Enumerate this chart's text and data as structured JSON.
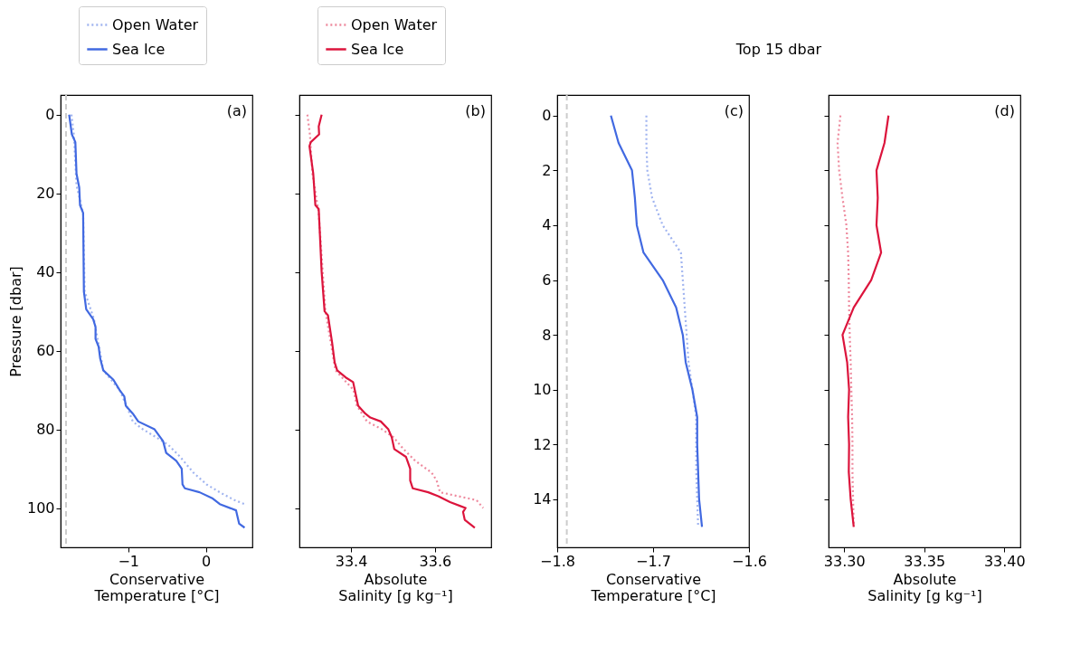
{
  "chart_data": [
    {
      "type": "line",
      "xlabel": "Conservative Temperature [°C]",
      "ylabel": "Pressure [dbar]",
      "xlim": [
        -1.87,
        0.6
      ],
      "xticks": [
        -1,
        0
      ],
      "ylim": [
        110,
        -5
      ],
      "yticks": [
        0,
        20,
        40,
        60,
        80,
        100
      ],
      "legend": "top",
      "grid": false,
      "annotations": [
        "(a)"
      ],
      "ref_lines": [
        {
          "axis": "x",
          "value": -1.8,
          "color": "#cccccc",
          "line_style": "dashed"
        }
      ],
      "series": [
        {
          "name": "Open Water",
          "color": "#a0b4f0",
          "line_style": "dotted",
          "x": [
            -1.73,
            -1.7,
            -1.665,
            -1.58,
            -1.56,
            -1.44,
            -1.32,
            -1.11,
            -1.0,
            -0.94,
            -0.81,
            -0.64,
            -0.48,
            -0.33,
            -0.16,
            0.01,
            0.18,
            0.37,
            0.5
          ],
          "values": [
            0,
            5,
            18,
            25,
            45,
            52,
            65,
            70,
            75,
            78,
            80,
            82,
            84,
            87,
            91,
            94,
            96,
            98,
            99
          ]
        },
        {
          "name": "Sea Ice",
          "color": "#4169e1",
          "line_style": "solid",
          "x": [
            -1.76,
            -1.725,
            -1.68,
            -1.665,
            -1.63,
            -1.62,
            -1.58,
            -1.57,
            -1.54,
            -1.45,
            -1.42,
            -1.42,
            -1.38,
            -1.36,
            -1.32,
            -1.19,
            -1.11,
            -1.05,
            -1.03,
            -0.94,
            -0.87,
            -0.66,
            -0.55,
            -0.51,
            -0.38,
            -0.31,
            -0.3,
            -0.27,
            -0.08,
            0.09,
            0.18,
            0.39,
            0.43,
            0.5
          ],
          "values": [
            0,
            5,
            7,
            15,
            18.5,
            23,
            25,
            45,
            49.5,
            52,
            54,
            57,
            59,
            62,
            65,
            67.4,
            70,
            71.6,
            74,
            76,
            78,
            80,
            83,
            86,
            88,
            90,
            94,
            95,
            96,
            97.6,
            99,
            100.6,
            104,
            105
          ]
        }
      ]
    },
    {
      "type": "line",
      "xlabel": "Absolute Salinity [g kg⁻¹]",
      "xlim": [
        33.277,
        33.734
      ],
      "xticks": [
        33.4,
        33.6
      ],
      "ylim": [
        110,
        -5
      ],
      "yticks": [
        0,
        20,
        40,
        60,
        80,
        100
      ],
      "tick_labels": "x",
      "legend": "top",
      "grid": false,
      "annotations": [
        "(b)"
      ],
      "series": [
        {
          "name": "Open Water",
          "color": "#ee8a9e",
          "line_style": "dotted",
          "x": [
            33.296,
            33.302,
            33.308,
            33.323,
            33.339,
            33.355,
            33.363,
            33.406,
            33.414,
            33.438,
            33.474,
            33.501,
            33.525,
            33.553,
            33.592,
            33.604,
            33.612,
            33.699,
            33.715
          ],
          "values": [
            0,
            5,
            15,
            25,
            50,
            60,
            65,
            70,
            74,
            78,
            80,
            82,
            85,
            88,
            91,
            93,
            96,
            98,
            100
          ]
        },
        {
          "name": "Sea Ice",
          "color": "#dc143c",
          "line_style": "solid",
          "x": [
            33.33,
            33.323,
            33.324,
            33.304,
            33.301,
            33.31,
            33.315,
            33.323,
            33.33,
            33.337,
            33.345,
            33.355,
            33.361,
            33.367,
            33.39,
            33.405,
            33.417,
            33.434,
            33.446,
            33.471,
            33.489,
            33.497,
            33.503,
            33.531,
            33.541,
            33.541,
            33.547,
            33.584,
            33.608,
            33.636,
            33.673,
            33.667,
            33.671,
            33.695
          ],
          "values": [
            0,
            3,
            5,
            7,
            8,
            15,
            23,
            24,
            40,
            50,
            51,
            58,
            63,
            65,
            67,
            68,
            74,
            76,
            77,
            78,
            80,
            82,
            85,
            87,
            90,
            93,
            95,
            96,
            97,
            98.5,
            100,
            101,
            103,
            105
          ]
        }
      ]
    },
    {
      "type": "line",
      "title": "Top 15 dbar",
      "xlabel": "Conservative Temperature [°C]",
      "xlim": [
        -1.8,
        -1.6
      ],
      "xticks": [
        -1.8,
        -1.7,
        -1.6
      ],
      "ylim": [
        15.75,
        -0.75
      ],
      "yticks": [
        0,
        2,
        4,
        6,
        8,
        10,
        12,
        14
      ],
      "grid": false,
      "annotations": [
        "(c)"
      ],
      "ref_lines": [
        {
          "axis": "x",
          "value": -1.79,
          "color": "#cccccc",
          "line_style": "dashed"
        }
      ],
      "series": [
        {
          "color": "#a0b4f0",
          "line_style": "dotted",
          "x": [
            -1.707,
            -1.707,
            -1.706,
            -1.701,
            -1.69,
            -1.671,
            -1.669,
            -1.667,
            -1.665,
            -1.663,
            -1.659,
            -1.655,
            -1.655,
            -1.655,
            -1.654,
            -1.653
          ],
          "values": [
            0,
            1,
            2,
            3,
            4,
            5,
            6,
            7,
            8,
            9,
            10,
            11,
            12,
            13,
            14,
            15
          ]
        },
        {
          "color": "#4169e1",
          "line_style": "solid",
          "x": [
            -1.744,
            -1.736,
            -1.722,
            -1.719,
            -1.717,
            -1.71,
            -1.69,
            -1.676,
            -1.669,
            -1.666,
            -1.659,
            -1.654,
            -1.654,
            -1.653,
            -1.652,
            -1.649
          ],
          "values": [
            0,
            1,
            2,
            3,
            4,
            5,
            6,
            7,
            8,
            9,
            10,
            11,
            12,
            13,
            14,
            15
          ]
        }
      ]
    },
    {
      "type": "line",
      "xlabel": "Absolute Salinity [g kg⁻¹]",
      "xlim": [
        33.2903,
        33.41
      ],
      "xticks": [
        {
          "value": 33.3,
          "label": "33.30"
        },
        {
          "value": 33.35,
          "label": "33.35"
        },
        {
          "value": 33.4,
          "label": "33.40"
        }
      ],
      "ylim": [
        15.75,
        -0.75
      ],
      "yticks": [
        0,
        2,
        4,
        6,
        8,
        10,
        12,
        14
      ],
      "tick_labels": "x",
      "grid": false,
      "annotations": [
        "(d)"
      ],
      "series": [
        {
          "color": "#ee8a9e",
          "line_style": "dotted",
          "x": [
            33.2977,
            33.2959,
            33.2969,
            33.299,
            33.3014,
            33.3025,
            33.3029,
            33.3031,
            33.3035,
            33.3041,
            33.3045,
            33.305,
            33.3052,
            33.3052,
            33.3056,
            33.306
          ],
          "values": [
            0,
            1,
            2,
            3,
            4,
            5,
            6,
            7,
            8,
            9,
            10,
            11,
            12,
            13,
            14,
            15
          ]
        },
        {
          "color": "#dc143c",
          "line_style": "solid",
          "x": [
            33.3277,
            33.3252,
            33.3202,
            33.321,
            33.3202,
            33.3231,
            33.3169,
            33.306,
            33.299,
            33.3019,
            33.3031,
            33.3025,
            33.3031,
            33.3029,
            33.3041,
            33.306
          ],
          "values": [
            0,
            1,
            2,
            3,
            4,
            5,
            6,
            7,
            8,
            9,
            10,
            11,
            12,
            13,
            14,
            15
          ]
        }
      ]
    }
  ]
}
